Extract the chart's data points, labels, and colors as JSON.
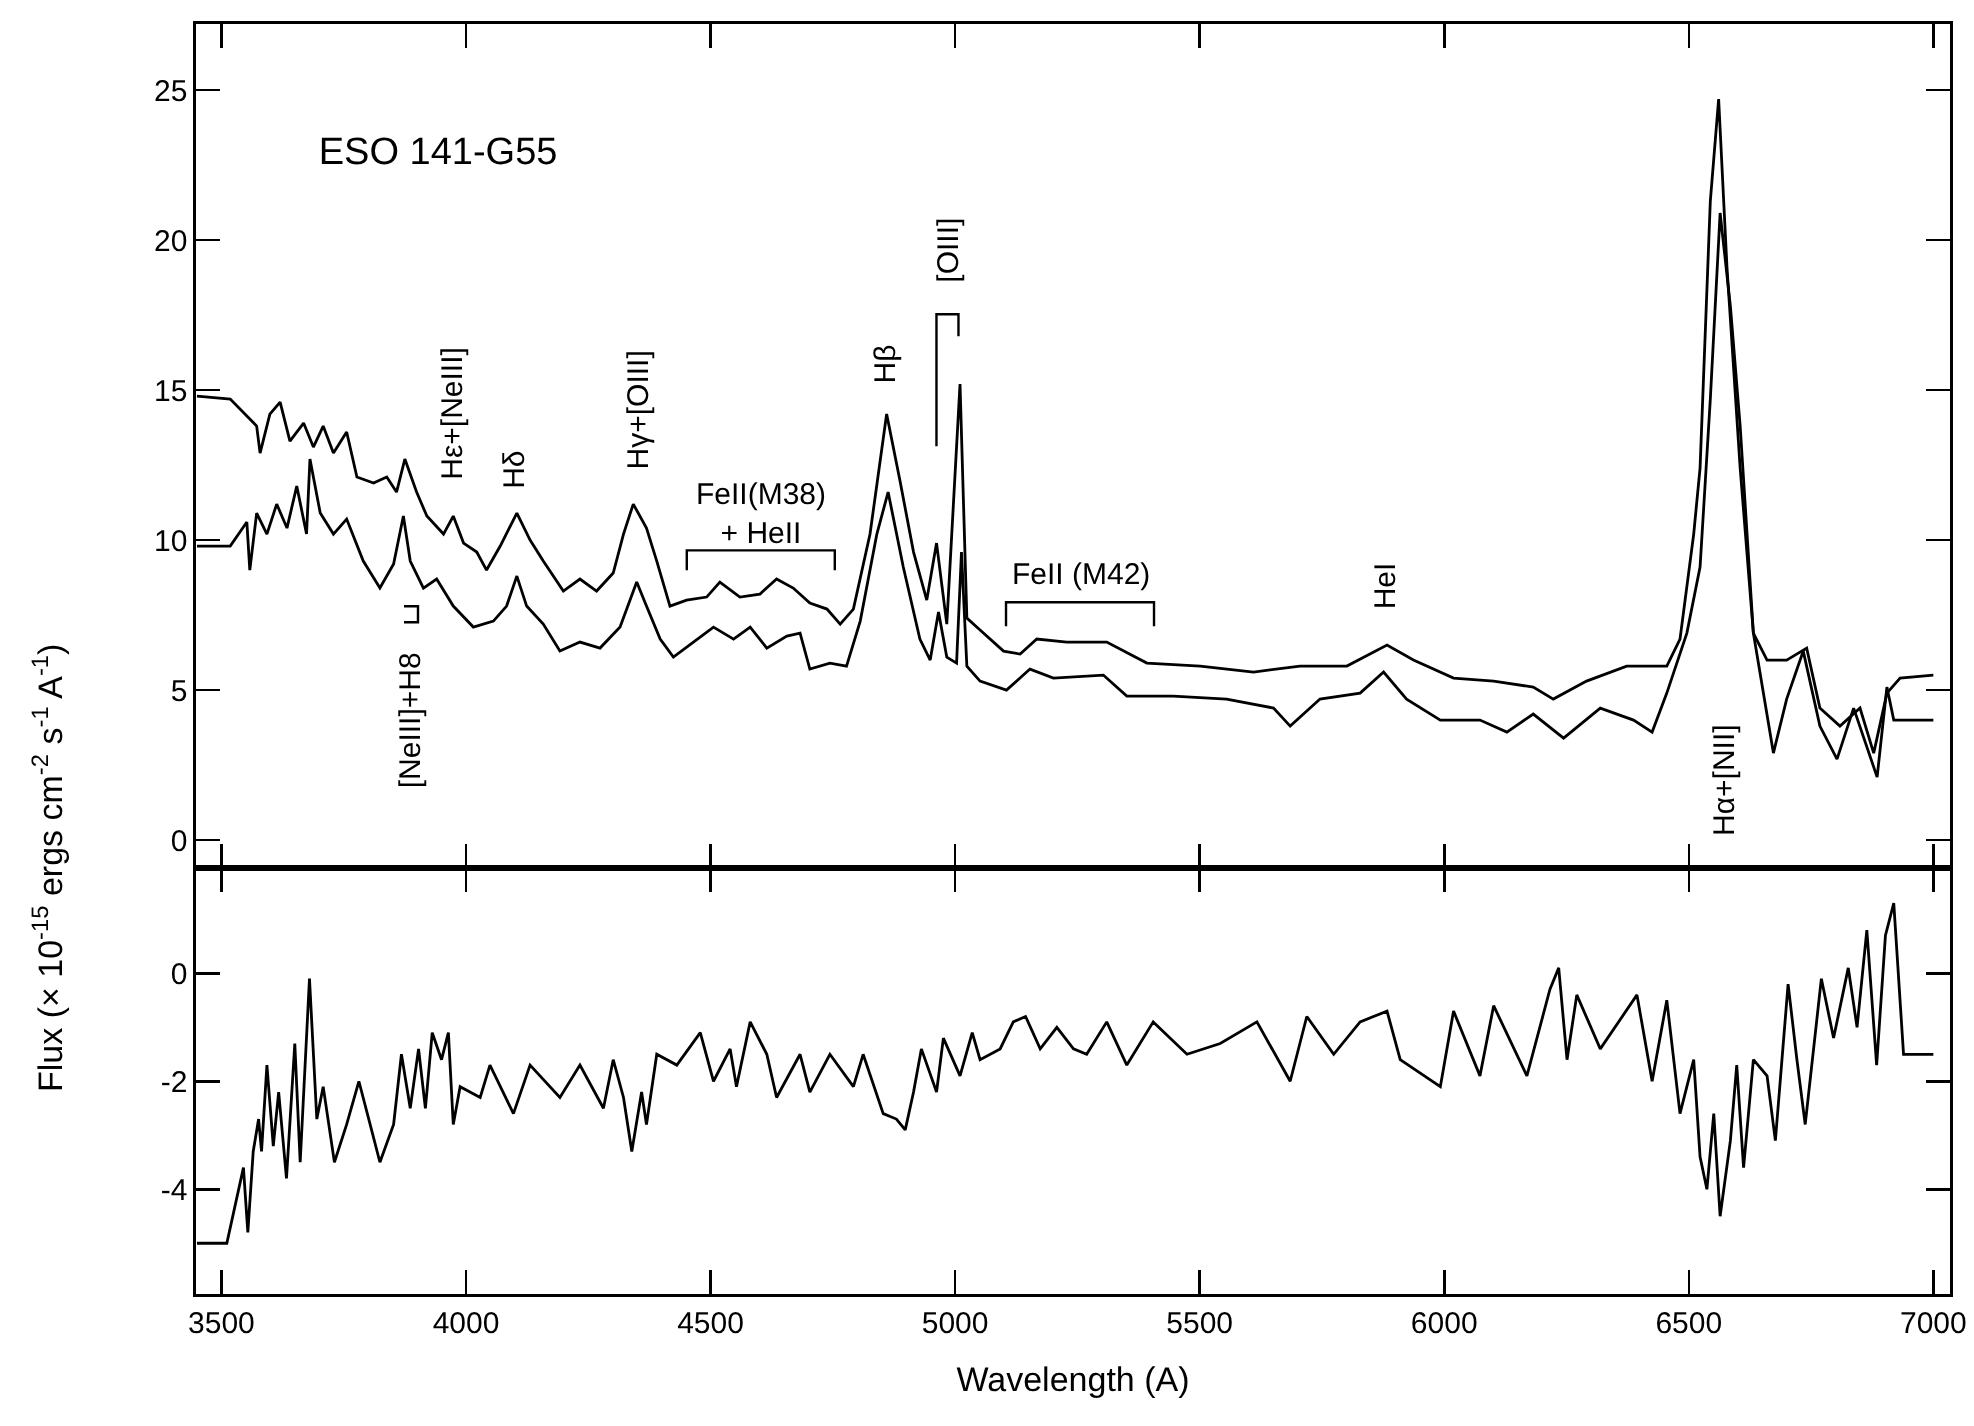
{
  "chart_data": [
    {
      "type": "line",
      "title": "ESO 141-G55",
      "ylabel": "Flux (× 10$^{-15}$ ergs cm$^{-2}$ s$^{-1}$ A$^{-1}$)",
      "xlim": [
        3448,
        7034
      ],
      "xticks": [
        3500,
        4000,
        4500,
        5000,
        5500,
        6000,
        6500,
        7000
      ],
      "ylim": [
        -0.93,
        27.2
      ],
      "yticks": [
        0,
        5,
        10,
        15,
        20,
        25
      ],
      "tick_labels": "y",
      "series": [
        {
          "color": "#000000",
          "x": [
            3450,
            3518,
            3572,
            3579,
            3599,
            3620,
            3640,
            3668,
            3688,
            3708,
            3729,
            3756,
            3777,
            3811,
            3838,
            3858,
            3875,
            3899,
            3920,
            3954,
            3974,
            3995,
            4022,
            4042,
            4070,
            4104,
            4131,
            4158,
            4199,
            4233,
            4267,
            4301,
            4322,
            4342,
            4369,
            4390,
            4417,
            4451,
            4492,
            4519,
            4560,
            4601,
            4635,
            4669,
            4703,
            4738,
            4765,
            4792,
            4826,
            4860,
            4887,
            4915,
            4942,
            4962,
            4983,
            5010,
            5024,
            5051,
            5099,
            5133,
            5167,
            5228,
            5310,
            5392,
            5501,
            5610,
            5705,
            5801,
            5883,
            5937,
            6019,
            6101,
            6182,
            6223,
            6291,
            6373,
            6455,
            6482,
            6510,
            6523,
            6544,
            6561,
            6578,
            6605,
            6632,
            6660,
            6700,
            6741,
            6768,
            6809,
            6850,
            6878,
            6905,
            6932,
            7000
          ],
          "values": [
            14.8,
            14.7,
            13.8,
            12.9,
            14.2,
            14.6,
            13.3,
            13.9,
            13.1,
            13.8,
            12.9,
            13.6,
            12.1,
            11.9,
            12.1,
            11.6,
            12.7,
            11.6,
            10.8,
            10.2,
            10.8,
            9.9,
            9.6,
            9.0,
            9.8,
            10.9,
            10.0,
            9.3,
            8.3,
            8.7,
            8.3,
            8.9,
            10.2,
            11.2,
            10.4,
            9.3,
            7.8,
            8.0,
            8.1,
            8.6,
            8.1,
            8.2,
            8.7,
            8.4,
            7.9,
            7.7,
            7.2,
            7.7,
            10.2,
            14.2,
            12.0,
            9.6,
            8.0,
            9.9,
            7.2,
            15.2,
            7.4,
            7.0,
            6.3,
            6.2,
            6.7,
            6.6,
            6.6,
            5.9,
            5.8,
            5.6,
            5.8,
            5.8,
            6.5,
            6.0,
            5.4,
            5.3,
            5.1,
            4.7,
            5.3,
            5.8,
            5.8,
            6.7,
            10.2,
            12.4,
            21.3,
            24.7,
            19.1,
            12.4,
            6.9,
            6.0,
            6.0,
            6.4,
            4.4,
            3.8,
            4.4,
            2.9,
            4.9,
            5.4,
            5.5
          ]
        },
        {
          "color": "#000000",
          "x": [
            3450,
            3518,
            3552,
            3558,
            3572,
            3593,
            3613,
            3634,
            3654,
            3674,
            3681,
            3702,
            3729,
            3756,
            3790,
            3824,
            3852,
            3872,
            3886,
            3913,
            3940,
            3974,
            4015,
            4056,
            4083,
            4104,
            4124,
            4158,
            4192,
            4233,
            4274,
            4315,
            4349,
            4369,
            4397,
            4424,
            4465,
            4506,
            4547,
            4581,
            4615,
            4656,
            4683,
            4703,
            4744,
            4778,
            4806,
            4840,
            4863,
            4894,
            4928,
            4949,
            4966,
            4983,
            5003,
            5013,
            5024,
            5051,
            5105,
            5153,
            5201,
            5303,
            5351,
            5446,
            5555,
            5651,
            5685,
            5746,
            5828,
            5876,
            5923,
            5992,
            6073,
            6128,
            6182,
            6244,
            6319,
            6387,
            6425,
            6455,
            6496,
            6523,
            6544,
            6564,
            6585,
            6605,
            6632,
            6673,
            6700,
            6734,
            6768,
            6803,
            6837,
            6885,
            6905,
            6919,
            7000
          ],
          "values": [
            9.8,
            9.8,
            10.6,
            9.0,
            10.9,
            10.2,
            11.2,
            10.4,
            11.8,
            10.2,
            12.7,
            10.9,
            10.2,
            10.7,
            9.3,
            8.4,
            9.2,
            10.8,
            9.3,
            8.4,
            8.7,
            7.8,
            7.1,
            7.3,
            7.8,
            8.8,
            7.8,
            7.2,
            6.3,
            6.6,
            6.4,
            7.1,
            8.6,
            7.8,
            6.7,
            6.1,
            6.6,
            7.1,
            6.7,
            7.1,
            6.4,
            6.8,
            6.9,
            5.7,
            5.9,
            5.8,
            7.3,
            10.2,
            11.6,
            9.1,
            6.7,
            6.0,
            7.6,
            6.1,
            5.9,
            9.6,
            5.8,
            5.3,
            5.0,
            5.7,
            5.4,
            5.5,
            4.8,
            4.8,
            4.7,
            4.4,
            3.8,
            4.7,
            4.9,
            5.6,
            4.7,
            4.0,
            4.0,
            3.6,
            4.2,
            3.4,
            4.4,
            4.0,
            3.6,
            4.9,
            6.9,
            9.1,
            14.7,
            20.9,
            17.8,
            13.8,
            6.9,
            2.9,
            4.7,
            6.3,
            3.8,
            2.7,
            4.4,
            2.1,
            5.1,
            4.0,
            4.0
          ]
        }
      ],
      "annotations": [
        "[NeIII]+H8",
        "Hε+[NeIII]",
        "Hδ",
        "Hγ+[OIII]",
        "FeII(M38)\n+ HeII",
        "Hβ",
        "[OIII]",
        "FeII (M42)",
        "HeI",
        "Hα+[NII]"
      ]
    },
    {
      "type": "line",
      "xlabel": "Wavelength (A)",
      "xlim": [
        3448,
        7034
      ],
      "xticks": [
        3500,
        4000,
        4500,
        5000,
        5500,
        6000,
        6500,
        7000
      ],
      "ylim": [
        -5.94,
        1.95
      ],
      "yticks": [
        -4,
        -2,
        0
      ],
      "series": [
        {
          "color": "#000000",
          "x": [
            3450,
            3511,
            3545,
            3554,
            3565,
            3576,
            3582,
            3593,
            3606,
            3617,
            3633,
            3650,
            3661,
            3680,
            3695,
            3708,
            3731,
            3756,
            3781,
            3804,
            3824,
            3852,
            3868,
            3886,
            3903,
            3917,
            3931,
            3950,
            3964,
            3974,
            3988,
            4029,
            4049,
            4097,
            4131,
            4192,
            4233,
            4281,
            4301,
            4322,
            4339,
            4359,
            4369,
            4390,
            4431,
            4479,
            4506,
            4540,
            4553,
            4581,
            4615,
            4635,
            4683,
            4703,
            4744,
            4792,
            4812,
            4853,
            4880,
            4898,
            4915,
            4931,
            4962,
            4976,
            5010,
            5035,
            5051,
            5092,
            5119,
            5144,
            5174,
            5208,
            5242,
            5269,
            5310,
            5351,
            5405,
            5474,
            5542,
            5617,
            5685,
            5719,
            5774,
            5828,
            5883,
            5910,
            5992,
            6019,
            6073,
            6101,
            6169,
            6216,
            6234,
            6251,
            6271,
            6319,
            6394,
            6425,
            6455,
            6482,
            6510,
            6523,
            6537,
            6551,
            6564,
            6585,
            6598,
            6612,
            6632,
            6660,
            6677,
            6703,
            6721,
            6738,
            6771,
            6796,
            6826,
            6844,
            6864,
            6884,
            6902,
            6919,
            6939,
            7000
          ],
          "values": [
            -5.0,
            -5.0,
            -3.6,
            -4.8,
            -3.3,
            -2.7,
            -3.3,
            -1.7,
            -3.2,
            -2.2,
            -3.8,
            -1.3,
            -3.5,
            -0.1,
            -2.7,
            -2.1,
            -3.5,
            -2.8,
            -2.0,
            -2.8,
            -3.5,
            -2.8,
            -1.5,
            -2.5,
            -1.4,
            -2.5,
            -1.1,
            -1.6,
            -1.1,
            -2.8,
            -2.1,
            -2.3,
            -1.7,
            -2.6,
            -1.7,
            -2.3,
            -1.7,
            -2.5,
            -1.6,
            -2.3,
            -3.3,
            -2.2,
            -2.8,
            -1.5,
            -1.7,
            -1.1,
            -2.0,
            -1.4,
            -2.1,
            -0.9,
            -1.5,
            -2.3,
            -1.5,
            -2.2,
            -1.5,
            -2.1,
            -1.5,
            -2.6,
            -2.7,
            -2.9,
            -2.2,
            -1.4,
            -2.2,
            -1.2,
            -1.9,
            -1.1,
            -1.6,
            -1.4,
            -0.9,
            -0.8,
            -1.4,
            -1.0,
            -1.4,
            -1.5,
            -0.9,
            -1.7,
            -0.9,
            -1.5,
            -1.3,
            -0.9,
            -2.0,
            -0.8,
            -1.5,
            -0.9,
            -0.7,
            -1.6,
            -2.1,
            -0.7,
            -1.9,
            -0.6,
            -1.9,
            -0.3,
            0.1,
            -1.6,
            -0.4,
            -1.4,
            -0.4,
            -2.0,
            -0.5,
            -2.6,
            -1.6,
            -3.4,
            -4.0,
            -2.6,
            -4.5,
            -3.1,
            -1.7,
            -3.6,
            -1.6,
            -1.9,
            -3.1,
            -0.2,
            -1.6,
            -2.8,
            -0.1,
            -1.2,
            0.1,
            -1.0,
            0.8,
            -1.7,
            0.7,
            1.3,
            -1.5,
            -1.5
          ]
        }
      ]
    }
  ]
}
